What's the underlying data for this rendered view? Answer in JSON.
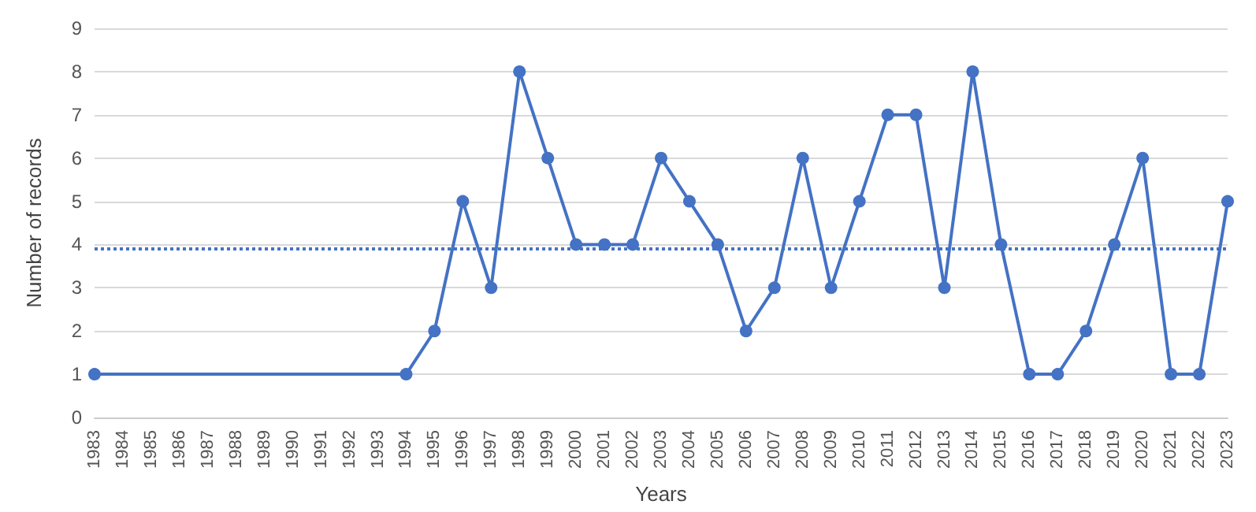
{
  "chart_data": {
    "type": "line",
    "xlabel": "Years",
    "ylabel": "Number of records",
    "categories": [
      "1983",
      "1984",
      "1985",
      "1986",
      "1987",
      "1988",
      "1989",
      "1990",
      "1991",
      "1992",
      "1993",
      "1994",
      "1995",
      "1996",
      "1997",
      "1998",
      "1999",
      "2000",
      "2001",
      "2002",
      "2003",
      "2004",
      "2005",
      "2006",
      "2007",
      "2008",
      "2009",
      "2010",
      "2011",
      "2012",
      "2013",
      "2014",
      "2015",
      "2016",
      "2017",
      "2018",
      "2019",
      "2020",
      "2021",
      "2022",
      "2023"
    ],
    "series": [
      {
        "color": "#4472c4",
        "values": [
          1,
          null,
          null,
          null,
          null,
          null,
          null,
          null,
          null,
          null,
          null,
          1,
          2,
          5,
          3,
          8,
          6,
          4,
          4,
          4,
          6,
          5,
          4,
          2,
          3,
          6,
          3,
          5,
          7,
          7,
          3,
          8,
          4,
          1,
          1,
          2,
          4,
          6,
          1,
          1,
          5
        ]
      }
    ],
    "ylim": [
      0,
      9
    ],
    "yticks": [
      0,
      1,
      2,
      3,
      4,
      5,
      6,
      7,
      8,
      9
    ],
    "grid": "y",
    "marker": "circle",
    "line_style": "solid",
    "ref_lines": [
      {
        "axis": "y",
        "value": 3.9,
        "color": "#4472c4",
        "line_style": "dotted"
      }
    ]
  }
}
